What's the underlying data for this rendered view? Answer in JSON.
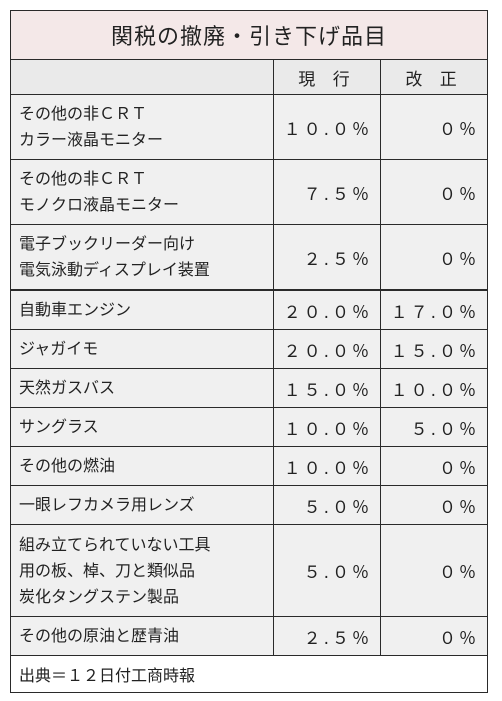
{
  "title": "関税の撤廃・引き下げ品目",
  "headers": {
    "current": "現 行",
    "revised": "改 正"
  },
  "rows": [
    {
      "name_lines": [
        "その他の非ＣＲＴ",
        "カラー液晶モニター"
      ],
      "current": "１０.０％",
      "revised": "０％"
    },
    {
      "name_lines": [
        "その他の非ＣＲＴ",
        "モノクロ液晶モニター"
      ],
      "current": "７.５％",
      "revised": "０％"
    },
    {
      "name_lines": [
        "電子ブックリーダー向け",
        "電気泳動ディスプレイ装置"
      ],
      "current": "２.５％",
      "revised": "０％"
    },
    {
      "name_lines": [
        "自動車エンジン"
      ],
      "current": "２０.０％",
      "revised": "１７.０％"
    },
    {
      "name_lines": [
        "ジャガイモ"
      ],
      "current": "２０.０％",
      "revised": "１５.０％"
    },
    {
      "name_lines": [
        "天然ガスバス"
      ],
      "current": "１５.０％",
      "revised": "１０.０％"
    },
    {
      "name_lines": [
        "サングラス"
      ],
      "current": "１０.０％",
      "revised": "５.０％"
    },
    {
      "name_lines": [
        "その他の燃油"
      ],
      "current": "１０.０％",
      "revised": "０％"
    },
    {
      "name_lines": [
        "一眼レフカメラ用レンズ"
      ],
      "current": "５.０％",
      "revised": "０％"
    },
    {
      "name_lines": [
        "組み立てられていない工具",
        "用の板、棹、刀と類似品",
        "炭化タングステン製品"
      ],
      "current": "５.０％",
      "revised": "０％"
    },
    {
      "name_lines": [
        "その他の原油と歴青油"
      ],
      "current": "２.５％",
      "revised": "０％"
    }
  ],
  "source": "出典＝１２日付工商時報",
  "colors": {
    "title_bg": "#f4e8e8",
    "header_bg": "#eaeaea",
    "shaded_row_bg": "#f0f0f0",
    "border": "#2a2a2a"
  }
}
